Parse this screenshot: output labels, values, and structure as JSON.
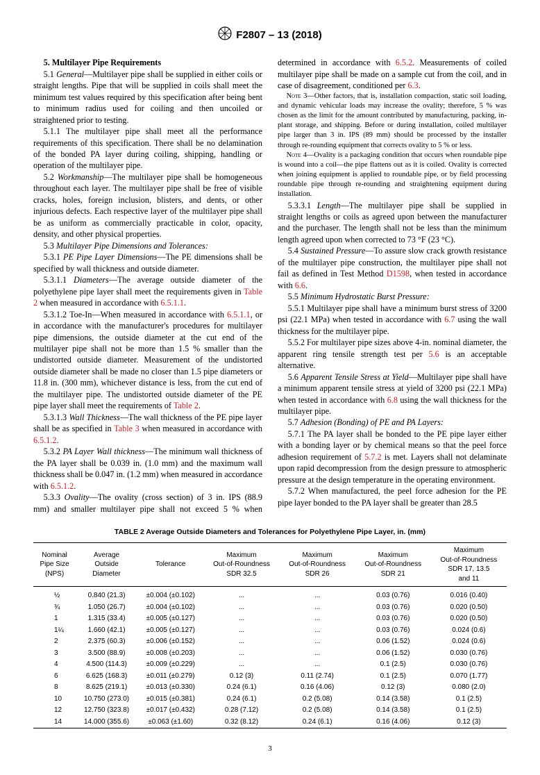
{
  "header": {
    "standard": "F2807 – 13 (2018)"
  },
  "section5": {
    "title": "5.  Multilayer Pipe Requirements",
    "p5_1": "5.1 General—Multilayer pipe shall be supplied in either coils or straight lengths. Pipe that will be supplied in coils shall meet the minimum test values required by this specification after being bent to minimum radius used for coiling and then uncoiled or straightened prior to testing.",
    "p5_1_1": "5.1.1 The multilayer pipe shall meet all the performance requirements of this specification. There shall be no delamination of the bonded PA layer during coiling, shipping, handling or operation of the multilayer pipe.",
    "p5_2": "5.2 Workmanship—The multilayer pipe shall be homogeneous throughout each layer. The multilayer pipe shall be free of visible cracks, holes, foreign inclusion, blisters, and dents, or other injurious defects. Each respective layer of the multilayer pipe shall be as uniform as commercially practicable in color, opacity, density, and other physical properties.",
    "p5_3": "5.3 Multilayer Pipe Dimensions and Tolerances:",
    "p5_3_1": "5.3.1 PE Pipe Layer Dimensions—The PE dimensions shall be specified by wall thickness and outside diameter.",
    "p5_3_1_1a": "5.3.1.1 Diameters—The average outside diameter of the polyethylene pipe layer shall meet the requirements given in ",
    "p5_3_1_1b": " when measured in accordance with ",
    "p5_3_1_1_link1": "Table 2",
    "p5_3_1_1_link2": "6.5.1.1",
    "p5_3_1_2a": "5.3.1.2 Toe-In—When measured in accordance with ",
    "p5_3_1_2_link": "6.5.1.1",
    "p5_3_1_2b": ", or in accordance with the manufacturer's procedures for multilayer pipe dimensions, the outside diameter at the cut end of the multilayer pipe shall not be more than 1.5 % smaller than the undistorted outside diameter. Measurement of the undistorted outside diameter shall be made no closer than 1.5 pipe diameters or 11.8 in. (300 mm), whichever distance is less, from the cut end of the multilayer pipe. The undistorted outside diameter of the PE pipe layer shall meet the requirements of ",
    "p5_3_1_2_link2": "Table 2",
    "p5_3_1_3a": "5.3.1.3 Wall Thickness—The wall thickness of the PE pipe layer shall be as specified in ",
    "p5_3_1_3_link": "Table 3",
    "p5_3_1_3b": " when measured in accordance with ",
    "p5_3_1_3_link2": "6.5.1.2",
    "p5_3_2a": "5.3.2 PA Layer Wall thickness—The minimum wall thickness of the PA layer shall be 0.039 in. (1.0 mm) and the maximum wall thickness shall be 0.047 in. (1.2 mm) when measured in accordance with ",
    "p5_3_2_link": "6.5.1.2",
    "p5_3_3a": "5.3.3 Ovality—The ovality (cross section) of 3 in. IPS (88.9 mm) and smaller multilayer pipe shall not exceed 5 % when determined in accordance with ",
    "p5_3_3_link": "6.5.2",
    "p5_3_3b": ". Measurements of coiled multilayer pipe shall be made on a sample cut from the coil, and in case of disagreement, conditioned per ",
    "p5_3_3_link2": "6.3",
    "note3_label": "Note",
    "note3": " 3—Other factors, that is, installation compaction, static soil loading, and dynamic vehicular loads may increase the ovality; therefore, 5 % was chosen as the limit for the amount contributed by manufacturing, packing, in-plant storage, and shipping. Before or during installation, coiled multilayer pipe larger than 3 in. IPS (89 mm) should be processed by the installer through re-rounding equipment that corrects ovality to 5 % or less.",
    "note4_label": "Note",
    "note4": " 4—Ovality is a packaging condition that occurs when roundable pipe is wound into a coil—the pipe flattens out as it is coiled. Ovality is corrected when joining equipment is applied to roundable pipe, or by field processing roundable pipe through re-rounding and straightening equipment during installation.",
    "p5_3_3_1": "5.3.3.1 Length—The multilayer pipe shall be supplied in straight lengths or coils as agreed upon between the manufacturer and the purchaser. The length shall not be less than the minimum length agreed upon when corrected to 73 °F (23 °C).",
    "p5_4a": "5.4 Sustained Pressure—To assure slow crack growth resistance of the multilayer pipe construction, the multilayer pipe shall not fail as defined in Test Method ",
    "p5_4_link": "D1598",
    "p5_4b": ", when tested in accordance with ",
    "p5_4_link2": "6.6",
    "p5_5": "5.5 Minimum Hydrostatic Burst Pressure:",
    "p5_5_1a": "5.5.1 Multilayer pipe shall have a minimum burst stress of 3200 psi (22.1 MPa) when tested in accordance with ",
    "p5_5_1_link": "6.7",
    "p5_5_1b": " using the wall thickness for the multilayer pipe.",
    "p5_5_2a": "5.5.2 For multilayer pipe sizes above 4-in. nominal diameter, the apparent ring tensile strength test per ",
    "p5_5_2_link": "5.6",
    "p5_5_2b": " is an acceptable alternative.",
    "p5_6a": "5.6 Apparent Tensile Stress at Yield—Multilayer pipe shall have a minimum apparent tensile stress at yield of 3200 psi (22.1 MPa) when tested in accordance with ",
    "p5_6_link": "6.8",
    "p5_6b": " using the wall thickness for the multilayer pipe.",
    "p5_7": "5.7 Adhesion (Bonding) of PE and PA Layers:",
    "p5_7_1a": "5.7.1 The PA layer shall be bonded to the PE pipe layer either with a bonding layer or by chemical means so that the peel force adhesion requirement of ",
    "p5_7_1_link": "5.7.2",
    "p5_7_1b": " is met. Layers shall not delaminate upon rapid decompression from the design pressure to atmospheric pressure at the design temperature in the operating environment.",
    "p5_7_2": "5.7.2 When manufactured, the peel force adhesion for the PE pipe layer bonded to the PA layer shall be greater than 28.5"
  },
  "table2": {
    "title": "TABLE 2 Average Outside Diameters and Tolerances for Polyethylene Pipe Layer, in. (mm)",
    "headers": {
      "c1": "Nominal\nPipe Size\n(NPS)",
      "c2": "Average\nOutside\nDiameter",
      "c3": "Tolerance",
      "c4": "Maximum\nOut-of-Roundness\nSDR 32.5",
      "c5": "Maximum\nOut-of-Roundness\nSDR 26",
      "c6": "Maximum\nOut-of-Roundness\nSDR 21",
      "c7": "Maximum\nOut-of-Roundness\nSDR 17, 13.5\nand 11"
    },
    "rows": [
      [
        "½",
        "0.840 (21.3)",
        "±0.004 (±0.102)",
        "...",
        "...",
        "0.03 (0.76)",
        "0.016 (0.40)"
      ],
      [
        "¾",
        "1.050 (26.7)",
        "±0.004 (±0.102)",
        "...",
        "...",
        "0.03 (0.76)",
        "0.020 (0.50)"
      ],
      [
        "1",
        "1.315 (33.4)",
        "±0.005 (±0.127)",
        "...",
        "...",
        "0.03 (0.76)",
        "0.020 (0.50)"
      ],
      [
        "1¼",
        "1.660 (42.1)",
        "±0.005 (±0.127)",
        "...",
        "...",
        "0.03 (0.76)",
        "0.024 (0.6)"
      ],
      [
        "2",
        "2.375 (60.3)",
        "±0.006 (±0.152)",
        "...",
        "...",
        "0.06 (1.52)",
        "0.024 (0.6)"
      ],
      [
        "3",
        "3.500 (88.9)",
        "±0.008 (±0.203)",
        "...",
        "...",
        "0.06 (1.52)",
        "0.030 (0.76)"
      ],
      [
        "4",
        "4.500 (114.3)",
        "±0.009 (±0.229)",
        "...",
        "...",
        "0.1 (2.5)",
        "0.030 (0.76)"
      ],
      [
        "6",
        "6.625 (168.3)",
        "±0.011 (±0.279)",
        "0.12 (3)",
        "0.11 (2.74)",
        "0.1 (2.5)",
        "0.070 (1.77)"
      ],
      [
        "8",
        "8.625 (219.1)",
        "±0.013 (±0.330)",
        "0.24 (6.1)",
        "0.16 (4.06)",
        "0.12 (3)",
        "0.080 (2.0)"
      ],
      [
        "10",
        "10.750 (273.0)",
        "±0.015 (±0.381)",
        "0.24 (6.1)",
        "0.2 (5.08)",
        "0.14 (3.58)",
        "0.1 (2.5)"
      ],
      [
        "12",
        "12.750 (323.8)",
        "±0.017 (±0.432)",
        "0.28 (7.12)",
        "0.2 (5.08)",
        "0.14 (3.58)",
        "0.1 (2.5)"
      ],
      [
        "14",
        "14.000 (355.6)",
        "±0.063 (±1.60)",
        "0.32 (8.12)",
        "0.24 (6.1)",
        "0.16 (4.06)",
        "0.12 (3)"
      ]
    ]
  },
  "pagenum": "3"
}
